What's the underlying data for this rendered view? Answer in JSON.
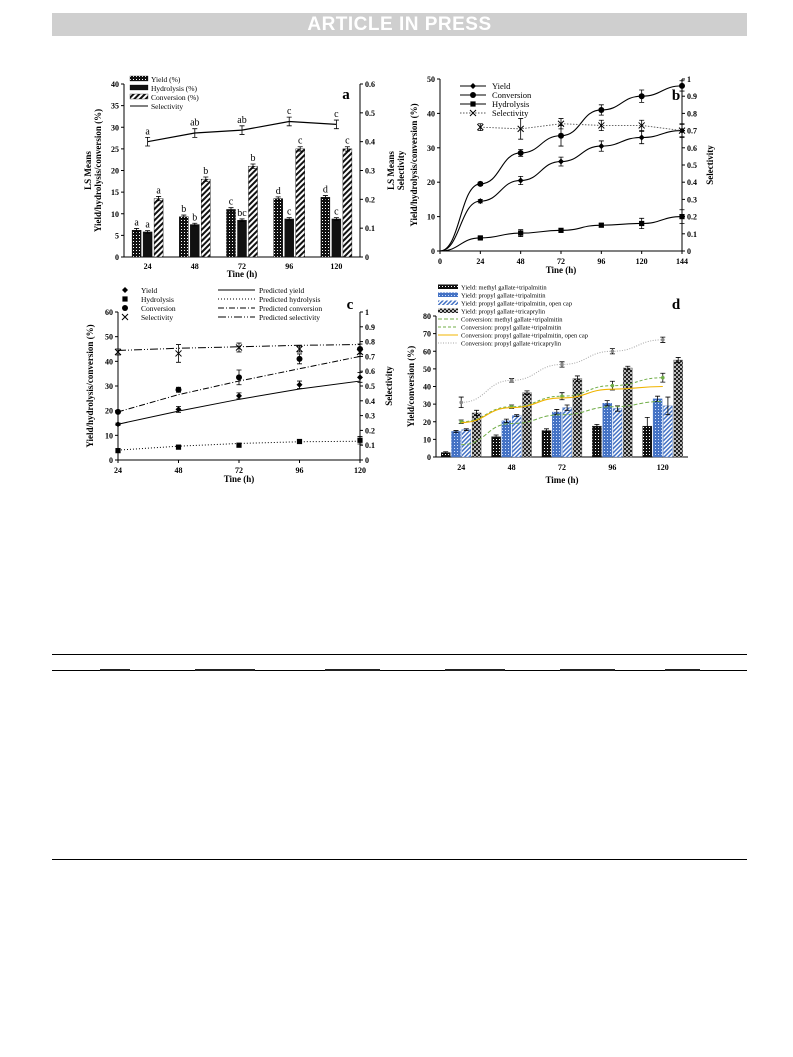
{
  "banner": "ARTICLE IN PRESS",
  "chart_data": [
    {
      "panel": "a",
      "type": "bar",
      "categories": [
        "24",
        "48",
        "72",
        "96",
        "120"
      ],
      "xlabel": "Tine (h)",
      "ylabel": "Yield/hydrolysis/conversion (%)",
      "ylabel_top": "LS Means",
      "y2label": "Selectivity",
      "y2label_top": "LS Means",
      "ylim": [
        0,
        40
      ],
      "y2lim": [
        0,
        0.6
      ],
      "yticks": [
        0,
        5,
        10,
        15,
        20,
        25,
        30,
        35,
        40
      ],
      "y2ticks": [
        "0",
        "0.1",
        "0.2",
        "0.3",
        "0.4",
        "0.5",
        "0.6"
      ],
      "legend": "top-left",
      "series": [
        {
          "name": "Yield (%)",
          "values": [
            6.2,
            9.3,
            11.0,
            13.5,
            13.8
          ],
          "error": [
            0.4,
            0.4,
            0.4,
            0.4,
            0.4
          ],
          "letters": [
            "a",
            "b",
            "c",
            "d",
            "d"
          ]
        },
        {
          "name": "Hydrolysis (%)",
          "values": [
            5.8,
            7.5,
            8.5,
            8.8,
            8.8
          ],
          "error": [
            0.3,
            0.3,
            0.3,
            0.3,
            0.3
          ],
          "letters": [
            "a",
            "b",
            "bc",
            "c",
            "c"
          ]
        },
        {
          "name": "Conversion (%)",
          "values": [
            13.5,
            18.0,
            21.0,
            25.0,
            25.0
          ],
          "error": [
            0.5,
            0.5,
            0.5,
            0.5,
            0.5
          ],
          "letters": [
            "a",
            "b",
            "b",
            "c",
            "c"
          ]
        }
      ],
      "line": {
        "name": "Selectivity",
        "values": [
          0.4,
          0.43,
          0.44,
          0.47,
          0.46
        ],
        "error": [
          0.015,
          0.015,
          0.015,
          0.015,
          0.015
        ],
        "letters": [
          "a",
          "ab",
          "ab",
          "c",
          "c"
        ]
      }
    },
    {
      "panel": "b",
      "type": "line",
      "x": [
        0,
        24,
        48,
        72,
        96,
        120,
        144
      ],
      "xlabel": "Tine (h)",
      "ylabel": "Yield/hydrolysis/conversion (%)",
      "y2label": "Selectivity",
      "ylim": [
        0,
        50
      ],
      "y2lim": [
        0,
        1
      ],
      "yticks": [
        0,
        10,
        20,
        30,
        40,
        50
      ],
      "y2ticks": [
        "0",
        "0.1",
        "0.2",
        "0.3",
        "0.4",
        "0.5",
        "0.6",
        "0.7",
        "0.8",
        "0.9",
        "1"
      ],
      "legend": "top-left",
      "series": [
        {
          "name": "Yield",
          "values": [
            0,
            14.5,
            20.5,
            26.0,
            30.5,
            33.0,
            35.0
          ],
          "error": [
            0,
            0.5,
            1.2,
            1.3,
            1.5,
            1.8,
            1.8
          ]
        },
        {
          "name": "Conversion",
          "values": [
            0,
            19.5,
            28.5,
            33.5,
            41.0,
            45.0,
            48.0
          ],
          "error": [
            0,
            0.5,
            1.0,
            3.0,
            1.5,
            1.8,
            1.5
          ]
        },
        {
          "name": "Hydrolysis",
          "values": [
            0,
            3.8,
            5.2,
            6.0,
            7.5,
            8.0,
            10.0
          ],
          "error": [
            0,
            0.3,
            1.0,
            0.5,
            0.5,
            1.5,
            2.0
          ]
        },
        {
          "name": "Selectivity",
          "axis": "right",
          "values": [
            null,
            0.72,
            0.71,
            0.74,
            0.73,
            0.73,
            0.7
          ],
          "error": [
            null,
            0.02,
            0.06,
            0.03,
            0.03,
            0.03,
            0.04
          ]
        }
      ]
    },
    {
      "panel": "c",
      "type": "scatter",
      "x": [
        24,
        48,
        72,
        96,
        120
      ],
      "xlabel": "Tine (h)",
      "ylabel": "Yield/hydrolysis/conversion (%)",
      "y2label": "Selectivity",
      "ylim": [
        0,
        60
      ],
      "y2lim": [
        0,
        1
      ],
      "yticks": [
        0,
        10,
        20,
        30,
        40,
        50,
        60
      ],
      "y2ticks": [
        "0",
        "0.1",
        "0.2",
        "0.3",
        "0.4",
        "0.5",
        "0.6",
        "0.7",
        "0.8",
        "0.9",
        "1"
      ],
      "legend": "top",
      "series": [
        {
          "name": "Yield",
          "values": [
            14.5,
            20.5,
            26.0,
            30.5,
            33.5
          ],
          "error": [
            0.5,
            1.2,
            1.2,
            1.5,
            2.0
          ]
        },
        {
          "name": "Hydrolysis",
          "values": [
            3.8,
            5.2,
            6.0,
            7.5,
            8.0
          ],
          "error": [
            0.3,
            0.8,
            0.5,
            0.5,
            1.5
          ]
        },
        {
          "name": "Conversion",
          "values": [
            19.5,
            28.5,
            33.5,
            41.0,
            45.0
          ],
          "error": [
            0.5,
            1.0,
            3.0,
            2.0,
            2.0
          ]
        },
        {
          "name": "Selectivity",
          "axis": "right",
          "values": [
            0.73,
            0.72,
            0.76,
            0.75,
            0.73
          ],
          "error": [
            0.02,
            0.06,
            0.03,
            0.02,
            0.03
          ]
        }
      ],
      "fits": [
        {
          "name": "Predicted yield",
          "values": [
            14.5,
            19.8,
            24.6,
            28.8,
            32.0
          ]
        },
        {
          "name": "Predicted hydrolysis",
          "values": [
            4.0,
            5.6,
            6.7,
            7.4,
            7.6
          ]
        },
        {
          "name": "Predicted conversion",
          "values": [
            19.5,
            26.5,
            32.0,
            37.0,
            42.0
          ]
        },
        {
          "name": "Predicted selectivity",
          "axis": "right",
          "values": [
            0.74,
            0.755,
            0.765,
            0.775,
            0.78
          ]
        }
      ]
    },
    {
      "panel": "d",
      "type": "bar",
      "categories": [
        "24",
        "48",
        "72",
        "96",
        "120"
      ],
      "xlabel": "Time (h)",
      "ylabel": "Yield/conversion (%)",
      "ylim": [
        0,
        80
      ],
      "yticks": [
        0,
        10,
        20,
        30,
        40,
        50,
        60,
        70,
        80
      ],
      "legend": "top",
      "series": [
        {
          "name": "Yield: methyl gallate+tripalmitin",
          "values": [
            2.5,
            11.5,
            15.0,
            17.5,
            17.5
          ],
          "error": [
            0.5,
            1.0,
            1.0,
            1.0,
            5.0
          ]
        },
        {
          "name": "Yield: propyl gallate+tripalmitin",
          "values": [
            14.5,
            20.5,
            25.5,
            30.5,
            33.0
          ],
          "error": [
            0.5,
            1.0,
            1.5,
            1.5,
            1.5
          ]
        },
        {
          "name": "Yield: propyl gallate+tripalmitin, open cap",
          "values": [
            15.5,
            23.5,
            28.0,
            27.5,
            29.0
          ],
          "error": [
            0.5,
            0.5,
            1.5,
            1.5,
            5.0
          ]
        },
        {
          "name": "Yield: propyl gallate+tricaprylin",
          "values": [
            25.0,
            36.5,
            44.5,
            50.5,
            55.0
          ],
          "error": [
            1.5,
            1.0,
            1.5,
            1.0,
            1.5
          ]
        }
      ],
      "lines": [
        {
          "name": "Conversion: methyl gallate+tripalmitin",
          "values": [
            7.0,
            19.0,
            24.0,
            28.5,
            31.5
          ]
        },
        {
          "name": "Conversion: propyl gallate+tripalmitin",
          "values": [
            20.0,
            28.5,
            34.5,
            40.5,
            45.0
          ],
          "error": [
            1.0,
            1.0,
            2.0,
            2.5,
            2.5
          ]
        },
        {
          "name": "Conversion: propyl gallate+tripalmitin, open cap",
          "values": [
            19.5,
            28.0,
            33.5,
            38.5,
            40.0
          ]
        },
        {
          "name": "Conversion: propyl gallate+tricaprylin",
          "values": [
            31.0,
            43.5,
            52.5,
            60.0,
            66.5
          ],
          "error": [
            3.0,
            1.0,
            1.5,
            1.5,
            1.5
          ]
        }
      ]
    }
  ],
  "panels": {
    "a": {
      "label": "a",
      "legend": [
        "Yield (%)",
        "Hydrolysis (%)",
        "Conversion (%)",
        "Selectivity"
      ]
    },
    "b": {
      "label": "b",
      "legend": [
        "Yield",
        "Conversion",
        "Hydrolysis",
        "Selectivity"
      ]
    },
    "c": {
      "label": "c",
      "legend_left": [
        "Yield",
        "Hydrolysis",
        "Conversion",
        "Selectivity"
      ],
      "legend_right": [
        "Predicted yield",
        "Predicted hydrolysis",
        "Predicted conversion",
        "Predicted selectivity"
      ]
    },
    "d": {
      "label": "d",
      "legend": [
        "Yield: methyl gallate+tripalmitin",
        "Yield: propyl gallate+tripalmitin",
        "Yield: propyl gallate+tripalmitin, open cap",
        "Yield: propyl gallate+tricaprylin",
        "Conversion: methyl gallate+tripalmitin",
        "Conversion: propyl gallate+tripalmitin",
        "Conversion: propyl gallate+tripalmitin, open cap",
        "Conversion: propyl gallate+tricaprylin"
      ]
    }
  },
  "colors": {
    "banner_bg": "#cfcfcf",
    "d_blue": "#4472c4",
    "d_green": "#70ad47",
    "d_orange": "#f0b400",
    "d_gray": "#a6a6a6"
  }
}
